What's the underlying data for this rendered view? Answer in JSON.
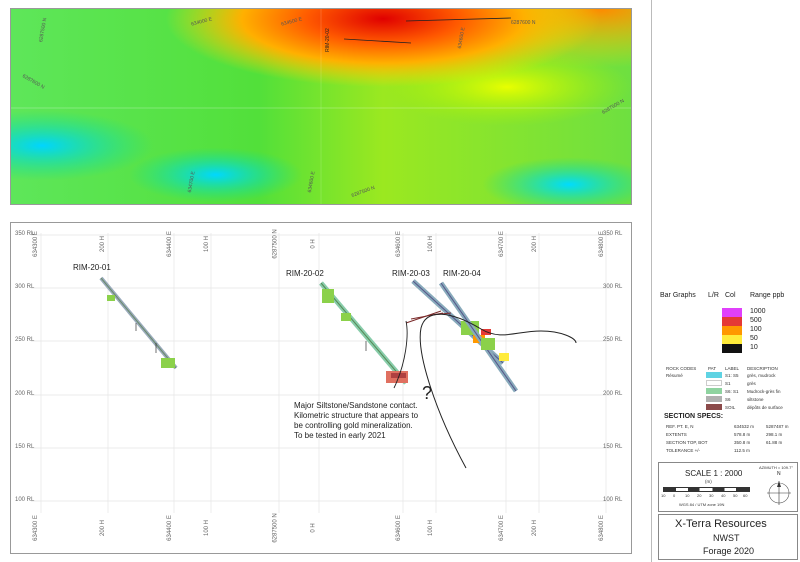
{
  "map_plan": {
    "grid_labels": [
      "6287500 N",
      "634000 E",
      "634500 E",
      "6287600 N",
      "634600 E",
      "6287600 N",
      "634600 E",
      "6287500 N",
      "6287500 N",
      "634700 E"
    ],
    "hole_labels": [
      "RIM-20-02"
    ]
  },
  "section": {
    "rl_labels_left": [
      "350 RL",
      "300 RL",
      "250 RL",
      "200 RL",
      "150 RL",
      "100 RL"
    ],
    "rl_labels_right": [
      "350 RL",
      "300 RL",
      "250 RL",
      "200 RL",
      "150 RL",
      "100 RL"
    ],
    "axis_labels_top": [
      "634300 E",
      "200 H",
      "634400 E",
      "100 H",
      "6287500 N",
      "0 H",
      "634600 E",
      "100 H",
      "634700 E",
      "200 H",
      "634800 E"
    ],
    "axis_labels_bottom": [
      "634300 E",
      "200 H",
      "634400 E",
      "100 H",
      "6287500 N",
      "0 H",
      "634600 E",
      "100 H",
      "634700 E",
      "200 H",
      "634800 E"
    ],
    "holes": [
      "RIM-20-01",
      "RIM-20-02",
      "RIM-20-03",
      "RIM-20-04"
    ],
    "question_mark": "?",
    "note_lines": [
      "Major Siltstone/Sandstone contact.",
      "Kilometric structure that appears to",
      "be controlling gold mineralization.",
      "To be tested in early 2021"
    ]
  },
  "legend": {
    "bar_graphs": "Bar Graphs",
    "lr": "L/R",
    "col": "Col",
    "range": "Range ppb",
    "ranges": [
      {
        "value": "1000",
        "color": "#e040fb"
      },
      {
        "value": "500",
        "color": "#e53935"
      },
      {
        "value": "100",
        "color": "#ff9800"
      },
      {
        "value": "50",
        "color": "#ffeb3b"
      },
      {
        "value": "10",
        "color": "#111111"
      }
    ]
  },
  "rock_codes": {
    "headers": [
      "ROCK CODES",
      "PAT",
      "LABEL",
      "DESCRIPTION"
    ],
    "rows": [
      {
        "pattern": "#5fd3e3",
        "label": "S1: S5",
        "desc": "grès, mudrock"
      },
      {
        "pattern": "#ffffff",
        "label": "S1",
        "desc": "grès"
      },
      {
        "pattern": "#8fd3a0",
        "label": "S6: S1",
        "desc": "Mudrock-grès fin"
      },
      {
        "pattern": "#b0b0b0",
        "label": "S6",
        "desc": "siltstone"
      },
      {
        "pattern": "#8b4a4a",
        "label": "SOIL",
        "desc": "dépôts de surface"
      }
    ],
    "first_row_name": "Résumé"
  },
  "specs": {
    "title": "SECTION  SPECS:",
    "rows": [
      {
        "label": "REF. PT.  E, N",
        "v1": "634532 m",
        "v2": "5287487 m"
      },
      {
        "label": "EXTENTS",
        "v1": "578.8 m",
        "v2": "298.1 m"
      },
      {
        "label": "SECTION TOP, BOT",
        "v1": "350.8 m",
        "v2": "61.88 m"
      },
      {
        "label": "TOLERANCE  +/-",
        "v1": "112.5 m",
        "v2": ""
      }
    ]
  },
  "scale": {
    "label": "SCALE  1 : 2000",
    "unit": "(m)",
    "ticks": [
      "10",
      "0",
      "10",
      "20",
      "30",
      "40",
      "50",
      "60"
    ],
    "datum": "WGS 84 / UTM zone 19N",
    "azimuth": "AZIMUTH = 109.7°",
    "north": "N"
  },
  "title_block": {
    "company": "X-Terra Resources",
    "project": "NWST",
    "subtitle": "Forage 2020"
  }
}
